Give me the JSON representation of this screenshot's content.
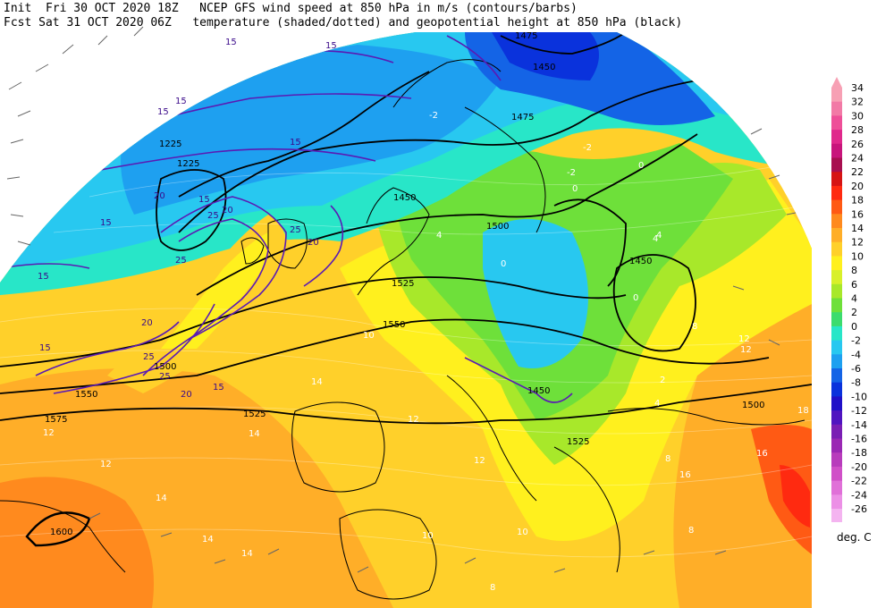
{
  "header": {
    "line1": "Init  Fri 30 OCT 2020 18Z   NCEP GFS wind speed at 850 hPa in m/s (contours/barbs)",
    "line2": "Fcst Sat 31 OCT 2020 06Z   temperature (shaded/dotted) and geopotential height at 850 hPa (black)"
  },
  "colorbar": {
    "unit": "deg. C",
    "levels": [
      {
        "label": "34",
        "color": "#f7a0b4"
      },
      {
        "label": "32",
        "color": "#f27aa6"
      },
      {
        "label": "30",
        "color": "#ee4f98"
      },
      {
        "label": "28",
        "color": "#e0288c"
      },
      {
        "label": "26",
        "color": "#c8157c"
      },
      {
        "label": "24",
        "color": "#a80f50"
      },
      {
        "label": "22",
        "color": "#d61414"
      },
      {
        "label": "20",
        "color": "#ff2a10"
      },
      {
        "label": "18",
        "color": "#ff5a14"
      },
      {
        "label": "16",
        "color": "#ff8a1e"
      },
      {
        "label": "14",
        "color": "#ffae28"
      },
      {
        "label": "12",
        "color": "#ffd02a"
      },
      {
        "label": "10",
        "color": "#fff01e"
      },
      {
        "label": "8",
        "color": "#d8f02a"
      },
      {
        "label": "6",
        "color": "#a8e82a"
      },
      {
        "label": "4",
        "color": "#6ee03a"
      },
      {
        "label": "2",
        "color": "#3cdc6e"
      },
      {
        "label": "0",
        "color": "#28e6c8"
      },
      {
        "label": "-2",
        "color": "#28c8f0"
      },
      {
        "label": "-4",
        "color": "#1ea0f0"
      },
      {
        "label": "-6",
        "color": "#1464e6"
      },
      {
        "label": "-8",
        "color": "#0a32dc"
      },
      {
        "label": "-10",
        "color": "#2010c8"
      },
      {
        "label": "-12",
        "color": "#5014c0"
      },
      {
        "label": "-14",
        "color": "#7a1eb4"
      },
      {
        "label": "-16",
        "color": "#9a28b4"
      },
      {
        "label": "-18",
        "color": "#b83cbc"
      },
      {
        "label": "-20",
        "color": "#d050c8"
      },
      {
        "label": "-22",
        "color": "#e070d8"
      },
      {
        "label": "-24",
        "color": "#ec90e6"
      },
      {
        "label": "-26",
        "color": "#f4b4f0"
      }
    ]
  },
  "map_labels": {
    "height": [
      "1475",
      "1450",
      "1475",
      "1225",
      "1225",
      "1450",
      "1500",
      "1450",
      "1525",
      "1550",
      "1525",
      "1500",
      "1550",
      "1575",
      "1600",
      "1500",
      "1450",
      "1525"
    ],
    "wind": [
      "15",
      "15",
      "15",
      "15",
      "15",
      "20",
      "15",
      "25",
      "20",
      "25",
      "20",
      "25",
      "15",
      "20",
      "15",
      "25",
      "25",
      "15",
      "15",
      "20"
    ],
    "temp": [
      "-2",
      "-2",
      "0",
      "0",
      "-2",
      "4",
      "4",
      "0",
      "0",
      "2",
      "4",
      "8",
      "10",
      "12",
      "12",
      "14",
      "14",
      "12",
      "12",
      "12",
      "14",
      "16",
      "14",
      "10",
      "10",
      "8",
      "8",
      "8",
      "4",
      "18",
      "16",
      "14",
      "12"
    ]
  }
}
